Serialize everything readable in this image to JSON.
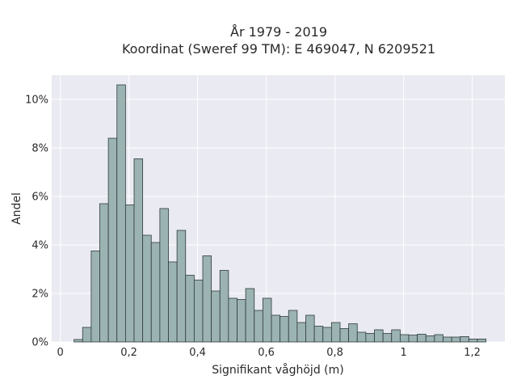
{
  "chart_data": {
    "type": "bar",
    "title_line1": "År 1979 - 2019",
    "title_line2": "Koordinat (Sweref 99 TM): E 469047, N 6209521",
    "xlabel": "Signifikant våghöjd (m)",
    "ylabel": "Andel",
    "xlim": [
      -0.025,
      1.295
    ],
    "ylim": [
      0,
      11
    ],
    "x_ticks": [
      {
        "value": 0,
        "label": "0"
      },
      {
        "value": 0.2,
        "label": "0,2"
      },
      {
        "value": 0.4,
        "label": "0,4"
      },
      {
        "value": 0.6,
        "label": "0,6"
      },
      {
        "value": 0.8,
        "label": "0,8"
      },
      {
        "value": 1.0,
        "label": "1"
      },
      {
        "value": 1.2,
        "label": "1,2"
      }
    ],
    "y_ticks": [
      {
        "value": 0,
        "label": "0%"
      },
      {
        "value": 2,
        "label": "2%"
      },
      {
        "value": 4,
        "label": "4%"
      },
      {
        "value": 6,
        "label": "6%"
      },
      {
        "value": 8,
        "label": "8%"
      },
      {
        "value": 10,
        "label": "10%"
      }
    ],
    "bin_width": 0.025,
    "bin_starts": [
      0.04,
      0.065,
      0.09,
      0.115,
      0.14,
      0.165,
      0.19,
      0.215,
      0.24,
      0.265,
      0.29,
      0.315,
      0.34,
      0.365,
      0.39,
      0.415,
      0.44,
      0.465,
      0.49,
      0.515,
      0.54,
      0.565,
      0.59,
      0.615,
      0.64,
      0.665,
      0.69,
      0.715,
      0.74,
      0.765,
      0.79,
      0.815,
      0.84,
      0.865,
      0.89,
      0.915,
      0.94,
      0.965,
      0.99,
      1.015,
      1.04,
      1.065,
      1.09,
      1.115,
      1.14,
      1.165,
      1.19,
      1.215
    ],
    "values": [
      0.1,
      0.6,
      3.75,
      5.7,
      8.4,
      10.6,
      5.65,
      7.55,
      4.4,
      4.1,
      5.5,
      3.3,
      4.6,
      2.75,
      2.55,
      3.55,
      2.1,
      2.95,
      1.8,
      1.75,
      2.2,
      1.3,
      1.8,
      1.1,
      1.05,
      1.3,
      0.8,
      1.1,
      0.65,
      0.6,
      0.8,
      0.55,
      0.75,
      0.4,
      0.35,
      0.5,
      0.35,
      0.5,
      0.3,
      0.28,
      0.32,
      0.25,
      0.3,
      0.2,
      0.2,
      0.22,
      0.12,
      0.12
    ],
    "grid": true,
    "legend": "none",
    "colors": {
      "bar_fill": "#9bb3b2",
      "bar_edge": "#2f3b3a",
      "plot_bg": "#eaeaf2",
      "grid": "#ffffff"
    }
  }
}
